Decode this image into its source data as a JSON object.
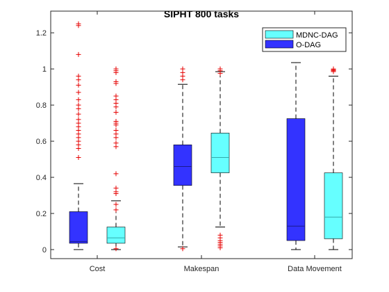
{
  "chart_data": {
    "type": "box",
    "title": "SIPHT 800 tasks",
    "xlabel": "",
    "ylabel": "",
    "categories": [
      "Cost",
      "Makespan",
      "Data Movement"
    ],
    "ylim": [
      -0.05,
      1.32
    ],
    "yticks": [
      0,
      0.2,
      0.4,
      0.6,
      0.8,
      1,
      1.2
    ],
    "ytick_labels": [
      "0",
      "0.2",
      "0.4",
      "0.6",
      "0.8",
      "1",
      "1.2"
    ],
    "grid": false,
    "legend_position": "top-right",
    "colors": {
      "odag": "#3333ff",
      "mdnc": "#66ffff",
      "outlier": "#e60000",
      "whisker": "#000000"
    },
    "series": [
      {
        "name": "O-DAG",
        "color": "#3333ff",
        "boxes": [
          {
            "category": "Cost",
            "min": 0.0,
            "q1": 0.035,
            "median": 0.045,
            "q3": 0.21,
            "max": 0.365,
            "outliers": [
              1.25,
              1.24,
              1.08,
              0.96,
              0.94,
              0.91,
              0.87,
              0.83,
              0.8,
              0.78,
              0.75,
              0.72,
              0.7,
              0.68,
              0.66,
              0.64,
              0.62,
              0.6,
              0.58,
              0.56,
              0.51
            ]
          },
          {
            "category": "Makespan",
            "min": 0.015,
            "q1": 0.355,
            "median": 0.46,
            "q3": 0.58,
            "max": 0.915,
            "outliers": [
              1.0,
              0.98,
              0.96,
              0.94,
              0.005
            ]
          },
          {
            "category": "Data Movement",
            "min": 0.0,
            "q1": 0.05,
            "median": 0.13,
            "q3": 0.725,
            "max": 1.035,
            "outliers": []
          }
        ]
      },
      {
        "name": "MDNC-DAG",
        "color": "#66ffff",
        "boxes": [
          {
            "category": "Cost",
            "min": 0.0,
            "q1": 0.035,
            "median": 0.065,
            "q3": 0.125,
            "max": 0.27,
            "outliers": [
              1.0,
              0.99,
              0.98,
              0.93,
              0.92,
              0.85,
              0.83,
              0.81,
              0.79,
              0.76,
              0.71,
              0.7,
              0.69,
              0.66,
              0.64,
              0.62,
              0.59,
              0.57,
              0.42,
              0.34,
              0.32,
              0.31,
              0.25,
              0.22,
              0.005
            ]
          },
          {
            "category": "Makespan",
            "min": 0.125,
            "q1": 0.425,
            "median": 0.51,
            "q3": 0.645,
            "max": 0.985,
            "outliers": [
              1.0,
              0.99,
              0.975,
              0.08,
              0.065,
              0.05,
              0.04,
              0.03,
              0.02,
              0.01
            ]
          },
          {
            "category": "Data Movement",
            "min": 0.0,
            "q1": 0.06,
            "median": 0.18,
            "q3": 0.425,
            "max": 0.96,
            "outliers": [
              1.0,
              0.995,
              0.99,
              0.985
            ]
          }
        ]
      }
    ]
  }
}
